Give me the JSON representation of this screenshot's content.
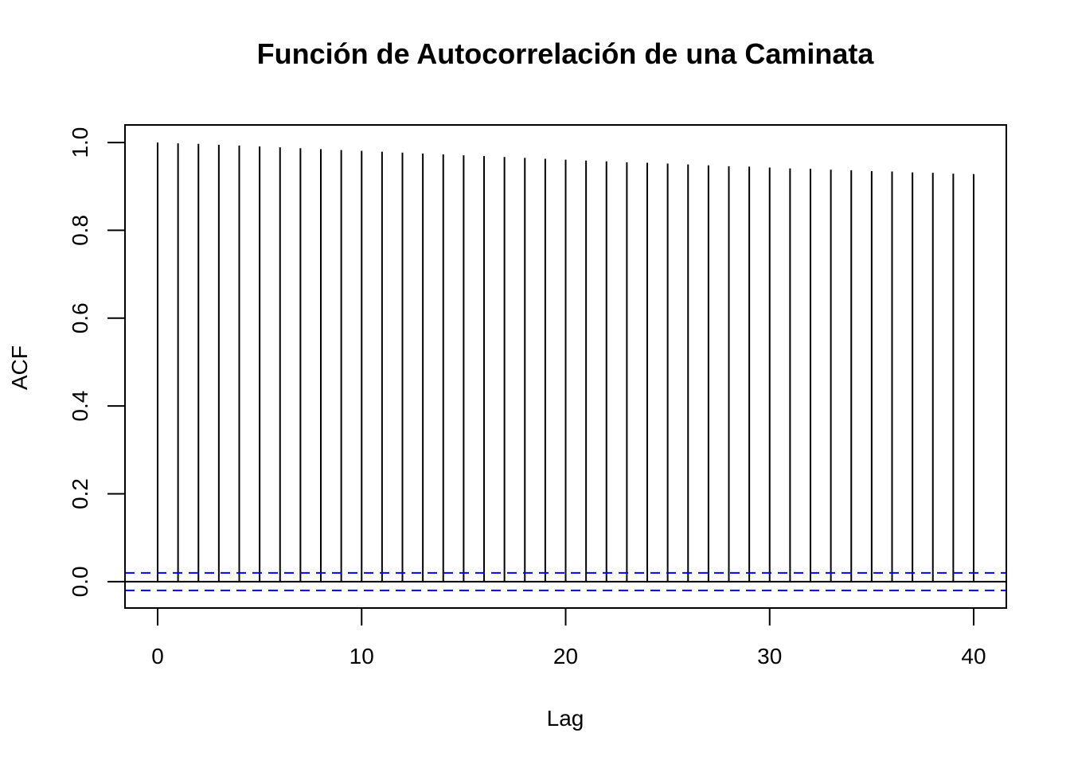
{
  "chart_data": {
    "type": "bar",
    "title": "Función de Autocorrelación de una Caminata",
    "xlabel": "Lag",
    "ylabel": "ACF",
    "x": [
      0,
      1,
      2,
      3,
      4,
      5,
      6,
      7,
      8,
      9,
      10,
      11,
      12,
      13,
      14,
      15,
      16,
      17,
      18,
      19,
      20,
      21,
      22,
      23,
      24,
      25,
      26,
      27,
      28,
      29,
      30,
      31,
      32,
      33,
      34,
      35,
      36,
      37,
      38,
      39,
      40
    ],
    "values": [
      1.0,
      0.998,
      0.997,
      0.995,
      0.993,
      0.991,
      0.989,
      0.987,
      0.985,
      0.983,
      0.981,
      0.979,
      0.977,
      0.975,
      0.973,
      0.971,
      0.969,
      0.967,
      0.965,
      0.963,
      0.961,
      0.959,
      0.957,
      0.955,
      0.954,
      0.952,
      0.95,
      0.948,
      0.946,
      0.945,
      0.943,
      0.941,
      0.94,
      0.938,
      0.937,
      0.935,
      0.934,
      0.932,
      0.931,
      0.929,
      0.928
    ],
    "xlim": [
      -1.6,
      41.6
    ],
    "ylim": [
      -0.06,
      1.04
    ],
    "xticks": [
      "0",
      "10",
      "20",
      "30",
      "40"
    ],
    "yticks": [
      "0.0",
      "0.2",
      "0.4",
      "0.6",
      "0.8",
      "1.0"
    ],
    "confidence_bound": 0.02,
    "colors": {
      "bars": "#000000",
      "confidence": "#0000ff",
      "zero_line": "#000000",
      "frame": "#000000"
    }
  }
}
